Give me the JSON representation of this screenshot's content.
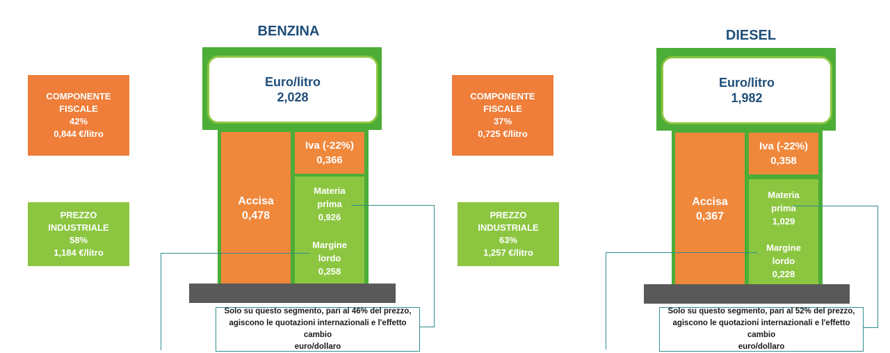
{
  "benzina": {
    "title": "BENZINA",
    "display": {
      "unit": "Euro/litro",
      "price": "2,028"
    },
    "fiscal": {
      "line1": "COMPONENTE",
      "line2": "FISCALE",
      "pct": "42%",
      "value": "0,844 €/litro"
    },
    "industrial": {
      "line1": "PREZZO",
      "line2": "INDUSTRIALE",
      "pct": "58%",
      "value": "1,184 €/litro"
    },
    "accisa": {
      "label": "Accisa",
      "value": "0,478"
    },
    "iva": {
      "label": "Iva (-22%)",
      "value": "0,366"
    },
    "materia": {
      "line1": "Materia",
      "line2": "prima",
      "value": "0,926"
    },
    "margine": {
      "line1": "Margine",
      "line2": "lordo",
      "value": "0,258"
    },
    "note": {
      "line1": "Solo su questo segmento, pari al 46% del prezzo,",
      "line2": "agiscono le quotazioni internazionali e l'effetto cambio",
      "line3": "euro/dollaro"
    }
  },
  "diesel": {
    "title": "DIESEL",
    "display": {
      "unit": "Euro/litro",
      "price": "1,982"
    },
    "fiscal": {
      "line1": "COMPONENTE",
      "line2": "FISCALE",
      "pct": "37%",
      "value": "0,725 €/litro"
    },
    "industrial": {
      "line1": "PREZZO",
      "line2": "INDUSTRIALE",
      "pct": "63%",
      "value": "1,257 €/litro"
    },
    "accisa": {
      "label": "Accisa",
      "value": "0,367"
    },
    "iva": {
      "label": "Iva (-22%)",
      "value": "0,358"
    },
    "materia": {
      "line1": "Materia",
      "line2": "prima",
      "value": "1,029"
    },
    "margine": {
      "line1": "Margine",
      "line2": "lordo",
      "value": "0,228"
    },
    "note": {
      "line1": "Solo su questo segmento, pari al 52% del prezzo,",
      "line2": "agiscono le quotazioni internazionali e l'effetto cambio",
      "line3": "euro/dollaro"
    }
  },
  "colors": {
    "fiscal": "#ee7e3a",
    "industrial": "#8cc641",
    "pump_frame": "#4cad37",
    "title": "#1f4e79",
    "connector": "#2e8b8b",
    "base": "#595959"
  }
}
